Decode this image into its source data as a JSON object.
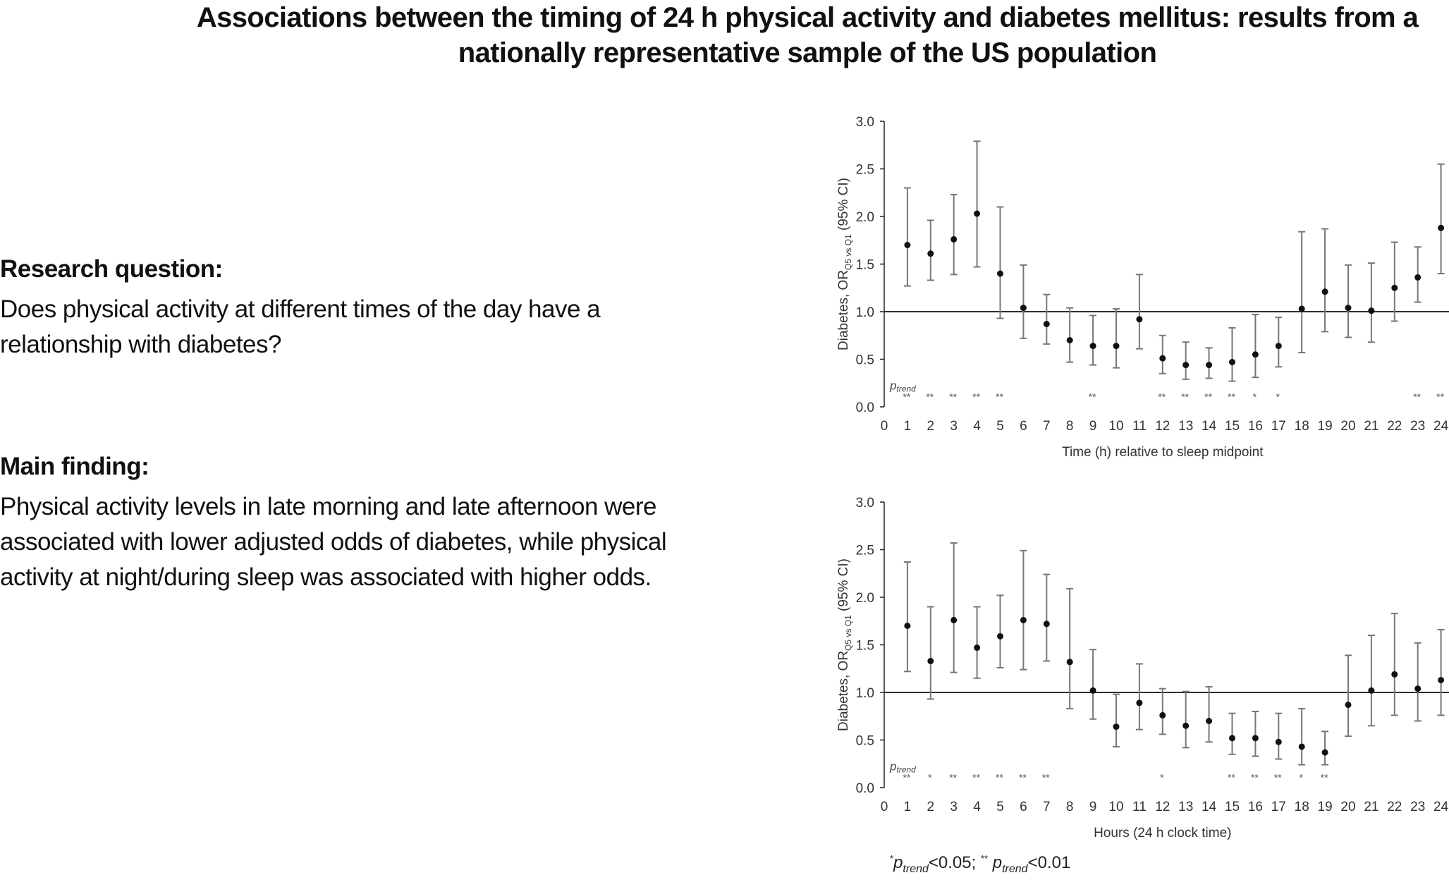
{
  "title_line1": "Associations between the timing of 24 h physical activity and diabetes mellitus: results from a",
  "title_line2": "nationally representative sample of the US population",
  "research_question": {
    "heading": "Research question:",
    "text": "Does physical activity at different times of the day have a relationship with diabetes?"
  },
  "main_finding": {
    "heading": "Main finding:",
    "text": "Physical activity levels in late morning and late afternoon were associated with lower adjusted odds of diabetes, while physical activity at night/during sleep was associated with higher odds."
  },
  "footnote": {
    "star1": "*",
    "p1": "p",
    "sub1": "trend",
    "lt1": "<0.05; ",
    "star2": "**",
    "p2": " p",
    "sub2": "trend",
    "lt2": "<0.01"
  },
  "chart_data": [
    {
      "type": "scatter",
      "subtype": "point-with-error-bars",
      "title": "",
      "xlabel": "Time (h) relative to sleep midpoint",
      "ylabel_main": "Diabetes, OR",
      "ylabel_sub": "Q5 vs Q1",
      "ylabel_tail": " (95% CI)",
      "ylim": [
        0,
        3.0
      ],
      "yticks": [
        "0.0",
        "0.5",
        "1.0",
        "1.5",
        "2.0",
        "2.5",
        "3.0"
      ],
      "xlim": [
        0,
        24
      ],
      "xticks": [
        "0",
        "1",
        "2",
        "3",
        "4",
        "5",
        "6",
        "7",
        "8",
        "9",
        "10",
        "11",
        "12",
        "13",
        "14",
        "15",
        "16",
        "17",
        "18",
        "19",
        "20",
        "21",
        "22",
        "23",
        "24"
      ],
      "reference_line": 1.0,
      "ptrend_label": "p",
      "ptrend_sub": "trend",
      "x": [
        1,
        2,
        3,
        4,
        5,
        6,
        7,
        8,
        9,
        10,
        11,
        12,
        13,
        14,
        15,
        16,
        17,
        18,
        19,
        20,
        21,
        22,
        23,
        24
      ],
      "or": [
        1.7,
        1.61,
        1.76,
        2.03,
        1.4,
        1.04,
        0.87,
        0.7,
        0.64,
        0.64,
        0.92,
        0.51,
        0.44,
        0.44,
        0.47,
        0.55,
        0.64,
        1.03,
        1.21,
        1.04,
        1.01,
        1.25,
        1.36,
        1.88
      ],
      "upper": [
        2.3,
        1.96,
        2.23,
        2.79,
        2.1,
        1.49,
        1.18,
        1.04,
        0.96,
        1.03,
        1.39,
        0.75,
        0.68,
        0.62,
        0.83,
        0.97,
        0.94,
        1.84,
        1.87,
        1.49,
        1.51,
        1.73,
        1.68,
        2.55
      ],
      "lower": [
        1.27,
        1.33,
        1.39,
        1.47,
        0.93,
        0.72,
        0.66,
        0.47,
        0.44,
        0.41,
        0.61,
        0.35,
        0.29,
        0.3,
        0.27,
        0.31,
        0.42,
        0.57,
        0.79,
        0.73,
        0.68,
        0.9,
        1.1,
        1.4
      ],
      "significance": [
        "**",
        "**",
        "**",
        "**",
        "**",
        "",
        "",
        "",
        "**",
        "",
        "",
        "**",
        "**",
        "**",
        "**",
        "*",
        "*",
        "",
        "",
        "",
        "",
        "",
        "**",
        "**"
      ]
    },
    {
      "type": "scatter",
      "subtype": "point-with-error-bars",
      "title": "",
      "xlabel": "Hours (24 h clock time)",
      "ylabel_main": "Diabetes, OR",
      "ylabel_sub": "Q5 vs Q1",
      "ylabel_tail": " (95% CI)",
      "ylim": [
        0,
        3.0
      ],
      "yticks": [
        "0.0",
        "0.5",
        "1.0",
        "1.5",
        "2.0",
        "2.5",
        "3.0"
      ],
      "xlim": [
        0,
        24
      ],
      "xticks": [
        "0",
        "1",
        "2",
        "3",
        "4",
        "5",
        "6",
        "7",
        "8",
        "9",
        "10",
        "11",
        "12",
        "13",
        "14",
        "15",
        "16",
        "17",
        "18",
        "19",
        "20",
        "21",
        "22",
        "23",
        "24"
      ],
      "reference_line": 1.0,
      "ptrend_label": "p",
      "ptrend_sub": "trend",
      "x": [
        1,
        2,
        3,
        4,
        5,
        6,
        7,
        8,
        9,
        10,
        11,
        12,
        13,
        14,
        15,
        16,
        17,
        18,
        19,
        20,
        21,
        22,
        23,
        24
      ],
      "or": [
        1.7,
        1.33,
        1.76,
        1.47,
        1.59,
        1.76,
        1.72,
        1.32,
        1.02,
        0.64,
        0.89,
        0.76,
        0.65,
        0.7,
        0.52,
        0.52,
        0.48,
        0.43,
        0.37,
        0.87,
        1.02,
        1.19,
        1.04,
        1.13
      ],
      "upper": [
        2.37,
        1.9,
        2.57,
        1.9,
        2.02,
        2.49,
        2.24,
        2.09,
        1.45,
        0.98,
        1.3,
        1.04,
        1.01,
        1.06,
        0.78,
        0.8,
        0.78,
        0.83,
        0.59,
        1.39,
        1.6,
        1.83,
        1.52,
        1.66
      ],
      "lower": [
        1.22,
        0.93,
        1.21,
        1.15,
        1.26,
        1.24,
        1.33,
        0.83,
        0.72,
        0.43,
        0.61,
        0.56,
        0.42,
        0.48,
        0.35,
        0.33,
        0.3,
        0.24,
        0.24,
        0.54,
        0.65,
        0.76,
        0.7,
        0.76
      ],
      "significance": [
        "**",
        "*",
        "**",
        "**",
        "**",
        "**",
        "**",
        "",
        "",
        "",
        "",
        "*",
        "",
        "",
        "**",
        "**",
        "**",
        "*",
        "**",
        "",
        "",
        "",
        "",
        ""
      ]
    }
  ]
}
